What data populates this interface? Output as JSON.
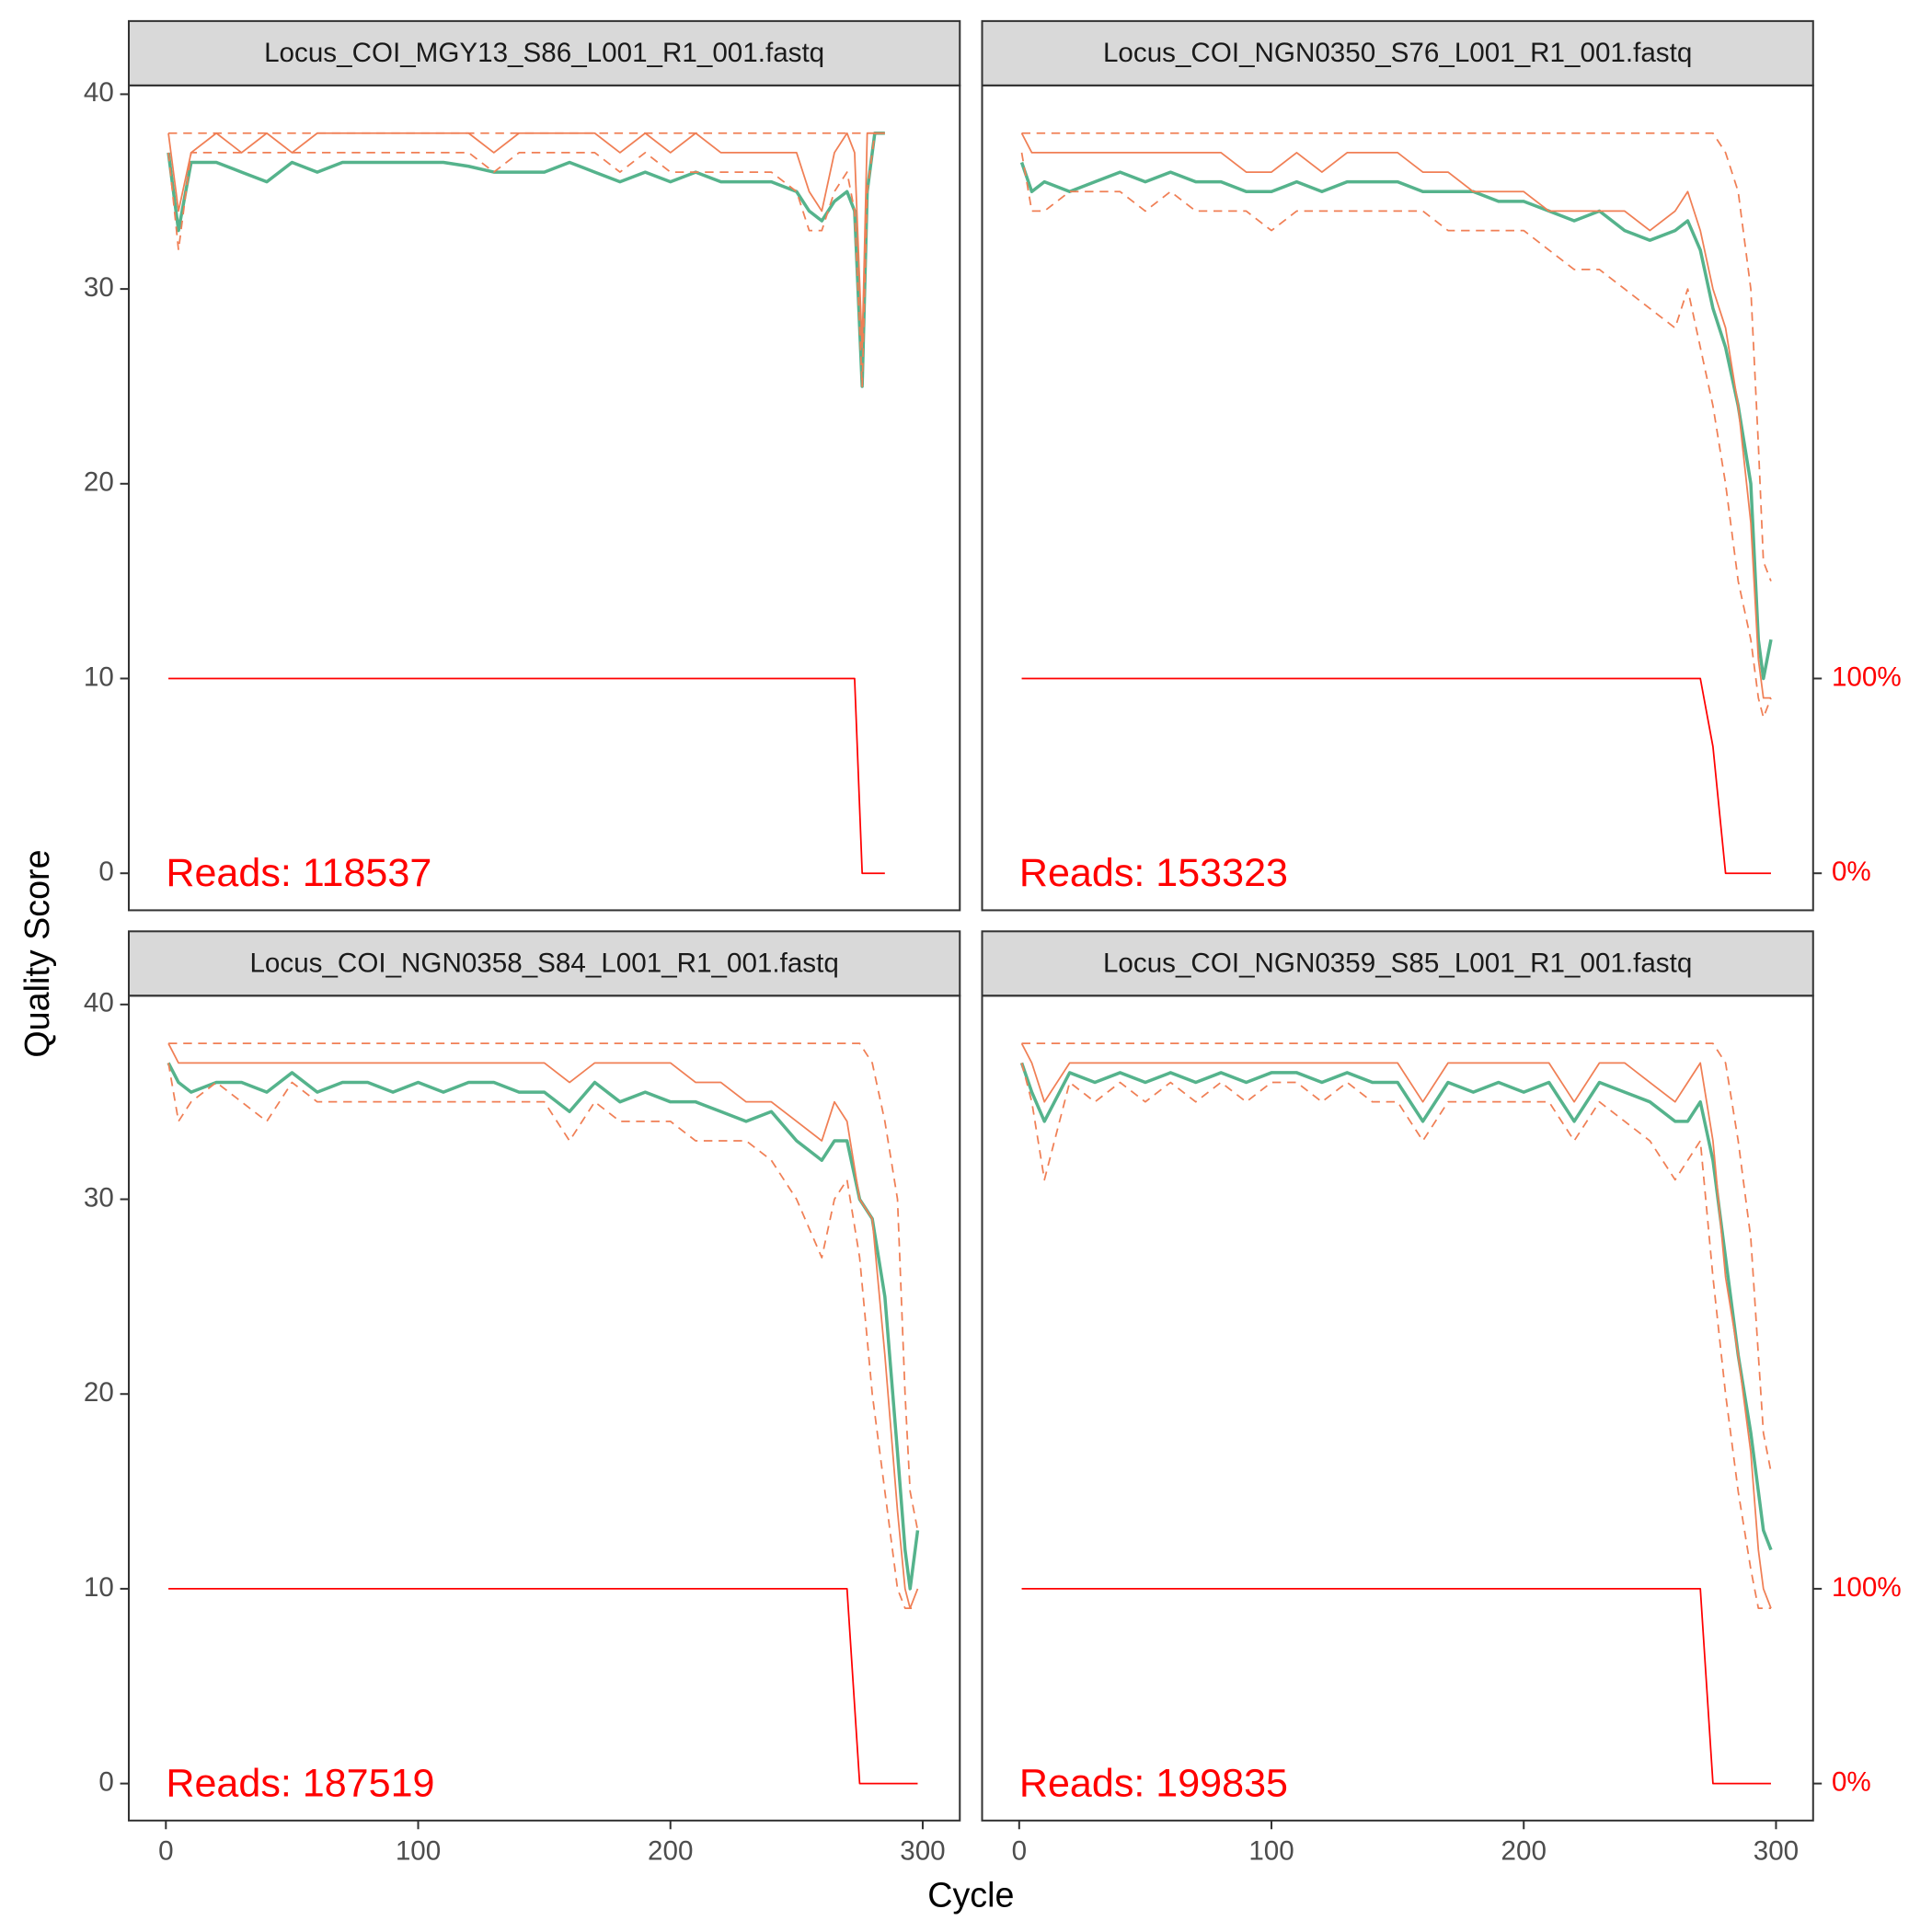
{
  "axis_labels": {
    "x": "Cycle",
    "y": "Quality Score"
  },
  "chart_data": [
    {
      "type": "line",
      "title": "Locus_COI_MGY13_S86_L001_R1_001.fastq",
      "annotation": "Reads:  118537",
      "xlim": [
        -14.7,
        314.7
      ],
      "ylim": [
        -1.9,
        40.45
      ],
      "y2lim": [
        -19,
        404.5
      ],
      "yticks": [
        0,
        10,
        20,
        30,
        40
      ],
      "x": [
        1,
        5,
        10,
        20,
        30,
        40,
        50,
        60,
        70,
        80,
        90,
        100,
        110,
        120,
        130,
        140,
        150,
        160,
        170,
        180,
        190,
        200,
        210,
        220,
        230,
        240,
        250,
        255,
        260,
        265,
        270,
        273,
        276,
        278,
        281,
        285
      ],
      "series": [
        {
          "color": "#55b38c",
          "values": [
            37,
            33,
            36.5,
            36.5,
            36,
            35.5,
            36.5,
            36,
            36.5,
            36.5,
            36.5,
            36.5,
            36.5,
            36.3,
            36,
            36,
            36,
            36.5,
            36,
            35.5,
            36,
            35.5,
            36,
            35.5,
            35.5,
            35.5,
            35,
            34,
            33.5,
            34.5,
            35,
            34,
            25,
            35,
            38,
            38
          ]
        },
        {
          "color": "#f07f55",
          "line_style": "solid",
          "values": [
            38,
            34,
            37,
            38,
            37,
            38,
            37,
            38,
            38,
            38,
            38,
            38,
            38,
            38,
            37,
            38,
            38,
            38,
            38,
            37,
            38,
            37,
            38,
            37,
            37,
            37,
            37,
            35,
            34,
            37,
            38,
            37,
            27,
            38,
            38,
            38
          ]
        },
        {
          "color": "#f07f55",
          "line_style": "dashed",
          "values": [
            37,
            32,
            37,
            37,
            37,
            37,
            37,
            37,
            37,
            37,
            37,
            37,
            37,
            37,
            36,
            37,
            37,
            37,
            37,
            36,
            37,
            36,
            36,
            36,
            36,
            36,
            35,
            33,
            33,
            35,
            36,
            34,
            25,
            35,
            38,
            38
          ]
        },
        {
          "color": "#f07f55",
          "line_style": "dashed",
          "values": [
            38,
            38,
            38,
            38,
            38,
            38,
            38,
            38,
            38,
            38,
            38,
            38,
            38,
            38,
            38,
            38,
            38,
            38,
            38,
            38,
            38,
            38,
            38,
            38,
            38,
            38,
            38,
            38,
            38,
            38,
            38,
            38,
            38,
            38,
            38,
            38
          ]
        },
        {
          "color": "#ff0000",
          "axis": "y2",
          "values": [
            100,
            100,
            100,
            100,
            100,
            100,
            100,
            100,
            100,
            100,
            100,
            100,
            100,
            100,
            100,
            100,
            100,
            100,
            100,
            100,
            100,
            100,
            100,
            100,
            100,
            100,
            100,
            100,
            100,
            100,
            100,
            100,
            0,
            0,
            0,
            0
          ]
        }
      ]
    },
    {
      "type": "line",
      "title": "Locus_COI_NGN0350_S76_L001_R1_001.fastq",
      "annotation": "Reads:  153323",
      "xlim": [
        -14.7,
        314.7
      ],
      "ylim": [
        -1.9,
        40.45
      ],
      "y2lim": [
        -19,
        404.5
      ],
      "y2ticks": [
        {
          "value": 0,
          "label": "0%"
        },
        {
          "value": 100,
          "label": "100%"
        }
      ],
      "x": [
        1,
        5,
        10,
        20,
        30,
        40,
        50,
        60,
        70,
        80,
        90,
        100,
        110,
        120,
        130,
        140,
        150,
        160,
        170,
        180,
        190,
        200,
        210,
        220,
        230,
        240,
        250,
        260,
        265,
        270,
        275,
        280,
        285,
        290,
        293,
        295,
        298
      ],
      "series": [
        {
          "color": "#55b38c",
          "values": [
            36.5,
            35,
            35.5,
            35,
            35.5,
            36,
            35.5,
            36,
            35.5,
            35.5,
            35,
            35,
            35.5,
            35,
            35.5,
            35.5,
            35.5,
            35,
            35,
            35,
            34.5,
            34.5,
            34,
            33.5,
            34,
            33,
            32.5,
            33,
            33.5,
            32,
            29,
            27,
            24,
            20,
            12,
            10,
            12
          ]
        },
        {
          "color": "#f07f55",
          "line_style": "solid",
          "values": [
            38,
            37,
            37,
            37,
            37,
            37,
            37,
            37,
            37,
            37,
            36,
            36,
            37,
            36,
            37,
            37,
            37,
            36,
            36,
            35,
            35,
            35,
            34,
            34,
            34,
            34,
            33,
            34,
            35,
            33,
            30,
            28,
            24,
            18,
            11,
            9,
            9
          ]
        },
        {
          "color": "#f07f55",
          "line_style": "dashed",
          "values": [
            37,
            34,
            34,
            35,
            35,
            35,
            34,
            35,
            34,
            34,
            34,
            33,
            34,
            34,
            34,
            34,
            34,
            34,
            33,
            33,
            33,
            33,
            32,
            31,
            31,
            30,
            29,
            28,
            30,
            27,
            24,
            20,
            15,
            12,
            9,
            8,
            9
          ]
        },
        {
          "color": "#f07f55",
          "line_style": "dashed",
          "values": [
            38,
            38,
            38,
            38,
            38,
            38,
            38,
            38,
            38,
            38,
            38,
            38,
            38,
            38,
            38,
            38,
            38,
            38,
            38,
            38,
            38,
            38,
            38,
            38,
            38,
            38,
            38,
            38,
            38,
            38,
            38,
            37,
            35,
            30,
            22,
            16,
            15
          ]
        },
        {
          "color": "#ff0000",
          "axis": "y2",
          "values": [
            100,
            100,
            100,
            100,
            100,
            100,
            100,
            100,
            100,
            100,
            100,
            100,
            100,
            100,
            100,
            100,
            100,
            100,
            100,
            100,
            100,
            100,
            100,
            100,
            100,
            100,
            100,
            100,
            100,
            100,
            65,
            0,
            0,
            0,
            0,
            0,
            0
          ]
        }
      ]
    },
    {
      "type": "line",
      "title": "Locus_COI_NGN0358_S84_L001_R1_001.fastq",
      "annotation": "Reads:  187519",
      "xlim": [
        -14.7,
        314.7
      ],
      "ylim": [
        -1.9,
        40.45
      ],
      "y2lim": [
        -19,
        404.5
      ],
      "yticks": [
        0,
        10,
        20,
        30,
        40
      ],
      "xticks": [
        0,
        100,
        200,
        300
      ],
      "x": [
        1,
        5,
        10,
        20,
        30,
        40,
        50,
        60,
        70,
        80,
        90,
        100,
        110,
        120,
        130,
        140,
        150,
        160,
        170,
        180,
        190,
        200,
        210,
        220,
        230,
        240,
        250,
        260,
        265,
        270,
        275,
        280,
        285,
        290,
        293,
        295,
        298
      ],
      "series": [
        {
          "color": "#55b38c",
          "values": [
            37,
            36,
            35.5,
            36,
            36,
            35.5,
            36.5,
            35.5,
            36,
            36,
            35.5,
            36,
            35.5,
            36,
            36,
            35.5,
            35.5,
            34.5,
            36,
            35,
            35.5,
            35,
            35,
            34.5,
            34,
            34.5,
            33,
            32,
            33,
            33,
            30,
            29,
            25,
            17,
            12,
            10,
            13
          ]
        },
        {
          "color": "#f07f55",
          "line_style": "solid",
          "values": [
            38,
            37,
            37,
            37,
            37,
            37,
            37,
            37,
            37,
            37,
            37,
            37,
            37,
            37,
            37,
            37,
            37,
            36,
            37,
            37,
            37,
            37,
            36,
            36,
            35,
            35,
            34,
            33,
            35,
            34,
            30,
            29,
            22,
            14,
            10,
            9,
            10
          ]
        },
        {
          "color": "#f07f55",
          "line_style": "dashed",
          "values": [
            37,
            34,
            35,
            36,
            35,
            34,
            36,
            35,
            35,
            35,
            35,
            35,
            35,
            35,
            35,
            35,
            35,
            33,
            35,
            34,
            34,
            34,
            33,
            33,
            33,
            32,
            30,
            27,
            30,
            31,
            27,
            20,
            15,
            10,
            9,
            9,
            9
          ]
        },
        {
          "color": "#f07f55",
          "line_style": "dashed",
          "values": [
            38,
            38,
            38,
            38,
            38,
            38,
            38,
            38,
            38,
            38,
            38,
            38,
            38,
            38,
            38,
            38,
            38,
            38,
            38,
            38,
            38,
            38,
            38,
            38,
            38,
            38,
            38,
            38,
            38,
            38,
            38,
            37,
            34,
            30,
            20,
            15,
            13
          ]
        },
        {
          "color": "#ff0000",
          "axis": "y2",
          "values": [
            100,
            100,
            100,
            100,
            100,
            100,
            100,
            100,
            100,
            100,
            100,
            100,
            100,
            100,
            100,
            100,
            100,
            100,
            100,
            100,
            100,
            100,
            100,
            100,
            100,
            100,
            100,
            100,
            100,
            100,
            0,
            0,
            0,
            0,
            0,
            0,
            0
          ]
        }
      ]
    },
    {
      "type": "line",
      "title": "Locus_COI_NGN0359_S85_L001_R1_001.fastq",
      "annotation": "Reads:  199835",
      "xlim": [
        -14.7,
        314.7
      ],
      "ylim": [
        -1.9,
        40.45
      ],
      "y2lim": [
        -19,
        404.5
      ],
      "xticks": [
        0,
        100,
        200,
        300
      ],
      "y2ticks": [
        {
          "value": 0,
          "label": "0%"
        },
        {
          "value": 100,
          "label": "100%"
        }
      ],
      "x": [
        1,
        5,
        10,
        20,
        30,
        40,
        50,
        60,
        70,
        80,
        90,
        100,
        110,
        120,
        130,
        140,
        150,
        160,
        170,
        180,
        190,
        200,
        210,
        220,
        230,
        240,
        250,
        260,
        265,
        270,
        275,
        280,
        285,
        290,
        293,
        295,
        298
      ],
      "series": [
        {
          "color": "#55b38c",
          "values": [
            37,
            35.5,
            34,
            36.5,
            36,
            36.5,
            36,
            36.5,
            36,
            36.5,
            36,
            36.5,
            36.5,
            36,
            36.5,
            36,
            36,
            34,
            36,
            35.5,
            36,
            35.5,
            36,
            34,
            36,
            35.5,
            35,
            34,
            34,
            35,
            32,
            27,
            22,
            18,
            15,
            13,
            12
          ]
        },
        {
          "color": "#f07f55",
          "line_style": "solid",
          "values": [
            38,
            37,
            35,
            37,
            37,
            37,
            37,
            37,
            37,
            37,
            37,
            37,
            37,
            37,
            37,
            37,
            37,
            35,
            37,
            37,
            37,
            37,
            37,
            35,
            37,
            37,
            36,
            35,
            36,
            37,
            33,
            26,
            22,
            17,
            12,
            10,
            9
          ]
        },
        {
          "color": "#f07f55",
          "line_style": "dashed",
          "values": [
            37,
            35,
            31,
            36,
            35,
            36,
            35,
            36,
            35,
            36,
            35,
            36,
            36,
            35,
            36,
            35,
            35,
            33,
            35,
            35,
            35,
            35,
            35,
            33,
            35,
            34,
            33,
            31,
            32,
            33,
            26,
            20,
            15,
            11,
            9,
            9,
            9
          ]
        },
        {
          "color": "#f07f55",
          "line_style": "dashed",
          "values": [
            38,
            38,
            38,
            38,
            38,
            38,
            38,
            38,
            38,
            38,
            38,
            38,
            38,
            38,
            38,
            38,
            38,
            38,
            38,
            38,
            38,
            38,
            38,
            38,
            38,
            38,
            38,
            38,
            38,
            38,
            38,
            37,
            33,
            28,
            22,
            18,
            16
          ]
        },
        {
          "color": "#ff0000",
          "axis": "y2",
          "values": [
            100,
            100,
            100,
            100,
            100,
            100,
            100,
            100,
            100,
            100,
            100,
            100,
            100,
            100,
            100,
            100,
            100,
            100,
            100,
            100,
            100,
            100,
            100,
            100,
            100,
            100,
            100,
            100,
            100,
            100,
            0,
            0,
            0,
            0,
            0,
            0,
            0
          ]
        }
      ]
    }
  ]
}
